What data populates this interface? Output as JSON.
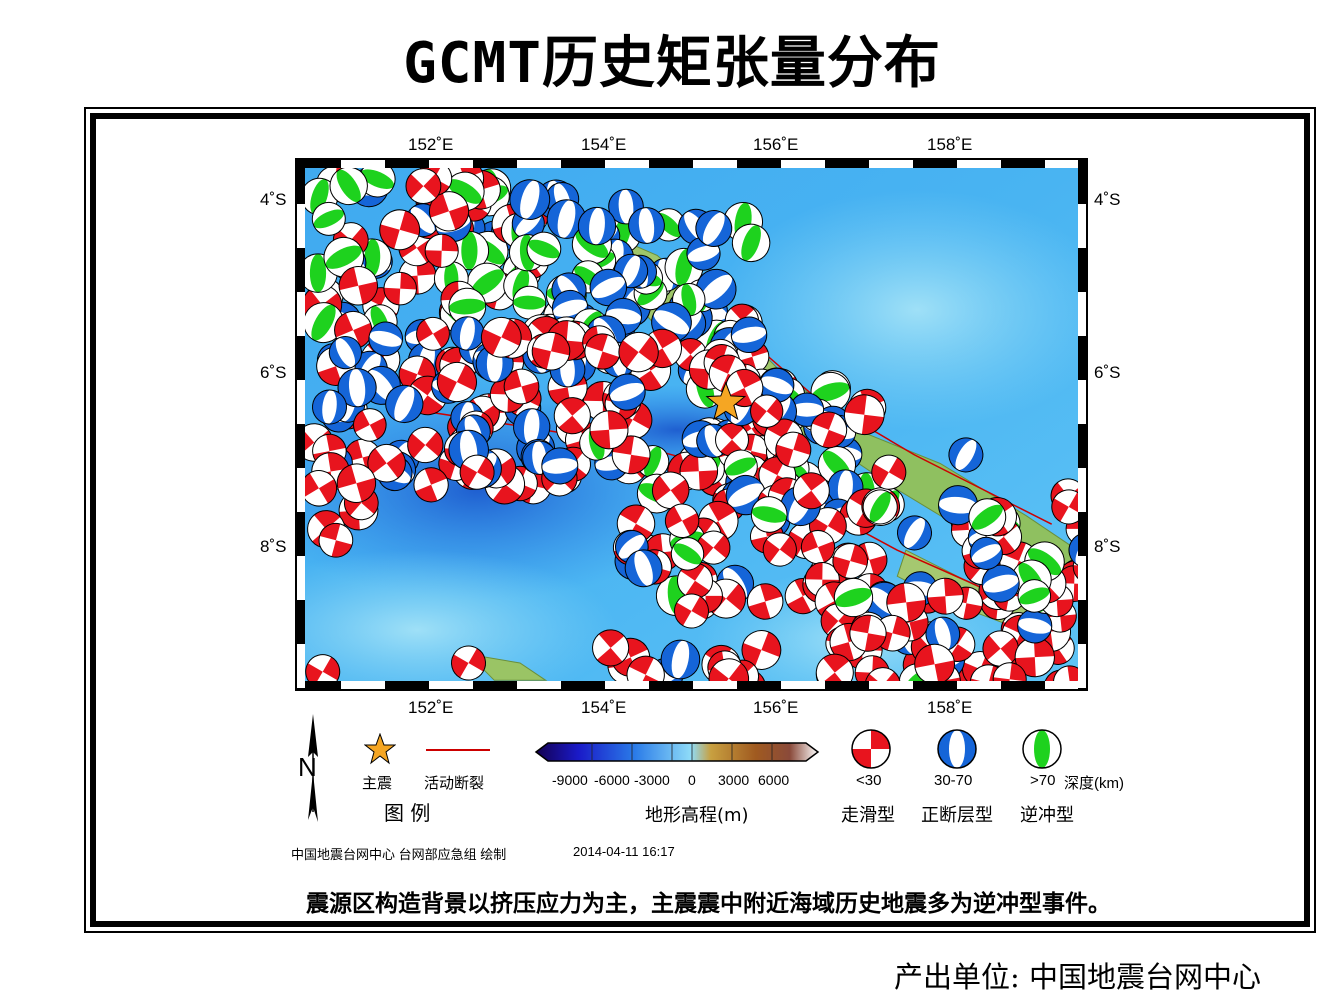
{
  "title": "GCMT历史矩张量分布",
  "map": {
    "lon_ticks": [
      "152˚E",
      "154˚E",
      "156˚E",
      "158˚E"
    ],
    "lat_ticks": [
      "4˚S",
      "6˚S",
      "8˚S"
    ],
    "colors": {
      "strike_slip": "#e8141e",
      "normal": "#1565d8",
      "thrust": "#1ed21e",
      "mainshock": "#f5a623",
      "fault": "#cc0000"
    },
    "mainshock": {
      "lon": 155.0,
      "lat": -6.3
    },
    "clusters": [
      {
        "lon_min": 150.2,
        "lon_max": 152.8,
        "lat_min": -5.4,
        "lat_max": -3.7,
        "count": 60,
        "mix": [
          0.45,
          0.2,
          0.35
        ]
      },
      {
        "lon_min": 152.6,
        "lon_max": 155.3,
        "lat_min": -5.7,
        "lat_max": -3.9,
        "count": 60,
        "mix": [
          0.05,
          0.45,
          0.5
        ]
      },
      {
        "lon_min": 150.2,
        "lon_max": 153.0,
        "lat_min": -7.3,
        "lat_max": -5.4,
        "count": 70,
        "mix": [
          0.65,
          0.35,
          0.0
        ]
      },
      {
        "lon_min": 152.8,
        "lon_max": 155.8,
        "lat_min": -7.4,
        "lat_max": -5.5,
        "count": 70,
        "mix": [
          0.55,
          0.3,
          0.15
        ]
      },
      {
        "lon_min": 155.0,
        "lon_max": 156.9,
        "lat_min": -7.6,
        "lat_max": -6.0,
        "count": 45,
        "mix": [
          0.3,
          0.4,
          0.3
        ]
      },
      {
        "lon_min": 153.8,
        "lon_max": 157.0,
        "lat_min": -8.6,
        "lat_max": -7.3,
        "count": 45,
        "mix": [
          0.8,
          0.1,
          0.1
        ]
      },
      {
        "lon_min": 156.2,
        "lon_max": 159.2,
        "lat_min": -9.7,
        "lat_max": -8.3,
        "count": 60,
        "mix": [
          0.82,
          0.1,
          0.08
        ]
      },
      {
        "lon_min": 157.7,
        "lon_max": 159.4,
        "lat_min": -8.6,
        "lat_max": -7.3,
        "count": 28,
        "mix": [
          0.35,
          0.3,
          0.35
        ]
      },
      {
        "lon_min": 150.2,
        "lon_max": 150.8,
        "lat_min": -8.0,
        "lat_max": -7.2,
        "count": 6,
        "mix": [
          1.0,
          0.0,
          0.0
        ]
      },
      {
        "lon_min": 153.6,
        "lon_max": 155.6,
        "lat_min": -9.7,
        "lat_max": -9.1,
        "count": 12,
        "mix": [
          0.75,
          0.25,
          0.0
        ]
      }
    ],
    "isolated": [
      {
        "lon": 152.1,
        "lat": -7.1,
        "type": "strike_slip"
      },
      {
        "lon": 152.0,
        "lat": -9.3,
        "type": "strike_slip"
      },
      {
        "lon": 150.3,
        "lat": -9.4,
        "type": "strike_slip"
      },
      {
        "lon": 154.6,
        "lat": -8.7,
        "type": "strike_slip"
      },
      {
        "lon": 157.8,
        "lat": -6.9,
        "type": "normal"
      },
      {
        "lon": 156.9,
        "lat": -7.1,
        "type": "strike_slip"
      },
      {
        "lon": 156.8,
        "lat": -7.5,
        "type": "thrust"
      },
      {
        "lon": 157.2,
        "lat": -7.8,
        "type": "normal"
      },
      {
        "lon": 159.0,
        "lat": -7.5,
        "type": "strike_slip"
      },
      {
        "lon": 159.2,
        "lat": -8.0,
        "type": "normal"
      }
    ]
  },
  "legend": {
    "north": "N",
    "mainshock_label": "主震",
    "fault_label": "活动断裂",
    "legend_title": "图  例",
    "colorbar_ticks": [
      "-9000",
      "-6000",
      "-3000",
      "0",
      "3000",
      "6000"
    ],
    "colorbar_title": "地形高程(m)",
    "depth_labels": [
      "<30",
      "30-70",
      ">70"
    ],
    "depth_unit": "深度(km)",
    "type_labels": [
      "走滑型",
      "正断层型",
      "逆冲型"
    ]
  },
  "credit": {
    "organization": "中国地震台网中心 台网部应急组 绘制",
    "timestamp": "2014-04-11 16:17"
  },
  "caption": "震源区构造背景以挤压应力为主，主震震中附近海域历史地震多为逆冲型事件。",
  "producer": "产出单位: 中国地震台网中心"
}
